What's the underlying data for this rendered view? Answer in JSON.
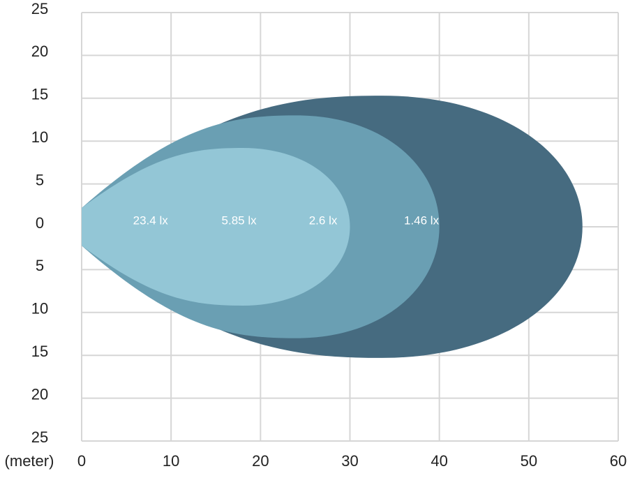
{
  "chart_data": {
    "type": "isolux",
    "x_label": "(meter)",
    "xlim": [
      0,
      60
    ],
    "xticks": [
      0,
      10,
      20,
      30,
      40,
      50,
      60
    ],
    "ylim": [
      -25,
      25
    ],
    "yticks": [
      {
        "value": 25,
        "label": "25"
      },
      {
        "value": 20,
        "label": "20"
      },
      {
        "value": 15,
        "label": "15"
      },
      {
        "value": 10,
        "label": "10"
      },
      {
        "value": 5,
        "label": "5"
      },
      0,
      {
        "value": -5,
        "label": "5"
      },
      {
        "value": -10,
        "label": "10"
      },
      {
        "value": -15,
        "label": "15"
      },
      {
        "value": -20,
        "label": "20"
      },
      {
        "value": -25,
        "label": "25"
      }
    ],
    "grid": true,
    "series": [
      {
        "name": "1.46 lx",
        "color": "#466b80",
        "reach": 56,
        "half_width": 15.3
      },
      {
        "name": "2.6 lx",
        "color": "#6a9fb3",
        "reach": 40,
        "half_width": 13
      },
      {
        "name": "5.85 lx",
        "color": "#93c6d6",
        "reach": 30,
        "half_width": 9.2
      },
      {
        "name": "23.4 lx"
      }
    ]
  }
}
